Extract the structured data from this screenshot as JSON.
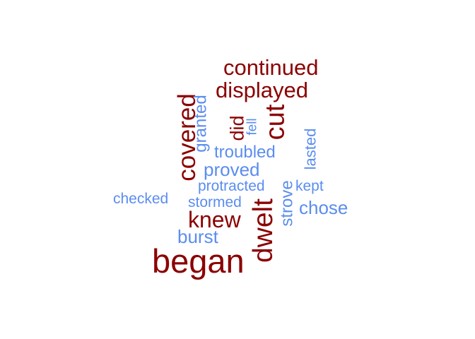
{
  "palette": {
    "dark": "#8b0000",
    "light": "#5b8def"
  },
  "words": {
    "continued": "continued",
    "displayed": "displayed",
    "covered": "covered",
    "granted": "granted",
    "did": "did",
    "fell": "fell",
    "cut": "cut",
    "troubled": "troubled",
    "lasted": "lasted",
    "proved": "proved",
    "protracted": "protracted",
    "kept": "kept",
    "checked": "checked",
    "stormed": "stormed",
    "strove": "strove",
    "chose": "chose",
    "knew": "knew",
    "dwelt": "dwelt",
    "burst": "burst",
    "began": "began"
  }
}
